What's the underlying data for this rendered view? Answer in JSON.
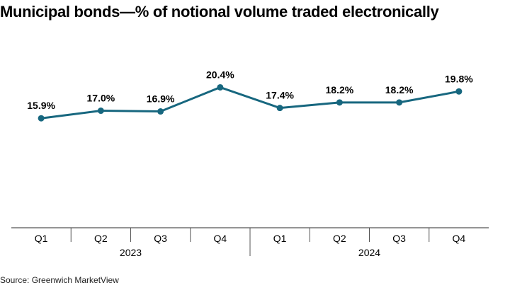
{
  "chart_data": {
    "type": "line",
    "title": "Municipal bonds—% of notional volume traded electronically",
    "categories": [
      "Q1",
      "Q2",
      "Q3",
      "Q4",
      "Q1",
      "Q2",
      "Q3",
      "Q4"
    ],
    "groups": [
      {
        "label": "2023",
        "count": 4
      },
      {
        "label": "2024",
        "count": 4
      }
    ],
    "series": [
      {
        "values": [
          15.9,
          17.0,
          16.9,
          20.4,
          17.4,
          18.2,
          18.2,
          19.8
        ],
        "labels": [
          "15.9%",
          "17.0%",
          "16.9%",
          "20.4%",
          "17.4%",
          "18.2%",
          "18.2%",
          "19.8%"
        ],
        "color": "#17677f"
      }
    ],
    "ylim": [
      0,
      30
    ],
    "grid": false,
    "xlabel": "",
    "ylabel": "",
    "source": "Source: Greenwich MarketView"
  }
}
